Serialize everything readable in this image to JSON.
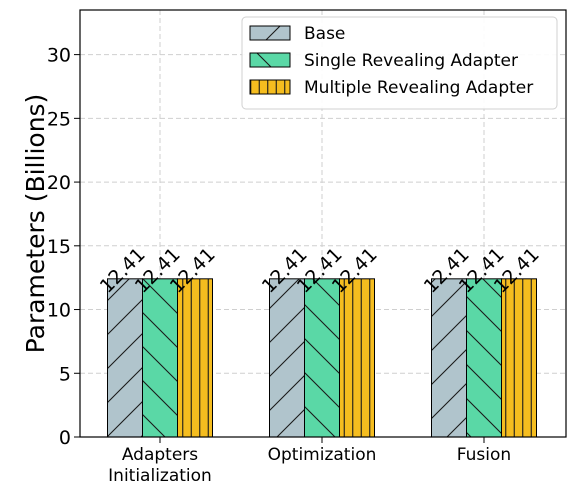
{
  "chart_data": {
    "type": "bar",
    "categories": [
      "Adapters\nInitialization",
      "Optimization",
      "Fusion"
    ],
    "series": [
      {
        "name": "Base",
        "values": [
          12.41,
          12.41,
          12.41
        ],
        "color": "#b0c4cc",
        "hatch": "forward-diagonal"
      },
      {
        "name": "Single Revealing Adapter",
        "values": [
          12.41,
          12.41,
          12.41
        ],
        "color": "#5ad8a6",
        "hatch": "back-diagonal"
      },
      {
        "name": "Multiple Revealing Adapter",
        "values": [
          12.41,
          12.41,
          12.41
        ],
        "color": "#f5bd1f",
        "hatch": "vertical"
      }
    ],
    "data_labels": [
      "12.41",
      "12.41",
      "12.41"
    ],
    "ylabel": "Parameters (Billions)",
    "xlabel": "",
    "ylim": [
      0,
      33.5
    ],
    "yticks": [
      0,
      5,
      10,
      15,
      20,
      25,
      30
    ],
    "grid": true,
    "legend_position": "top-right"
  }
}
